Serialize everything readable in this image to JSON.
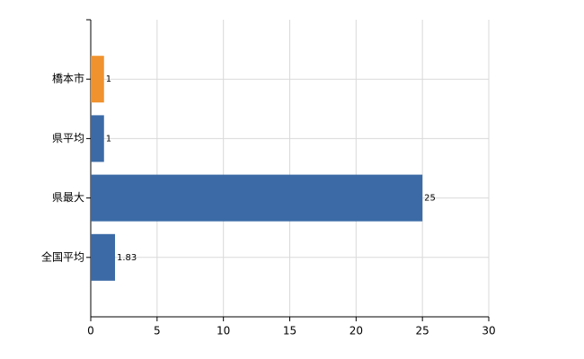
{
  "chart_data": {
    "type": "hbar",
    "categories": [
      "橋本市",
      "県平均",
      "県最大",
      "全国平均"
    ],
    "values": [
      1,
      1,
      25,
      1.83
    ],
    "colors": [
      "#f0922e",
      "#3b6aa6",
      "#3b6aa6",
      "#3b6aa6"
    ],
    "xlim": [
      0,
      30
    ],
    "xticks": [
      0,
      5,
      10,
      15,
      20,
      25,
      30
    ],
    "grid": true
  }
}
